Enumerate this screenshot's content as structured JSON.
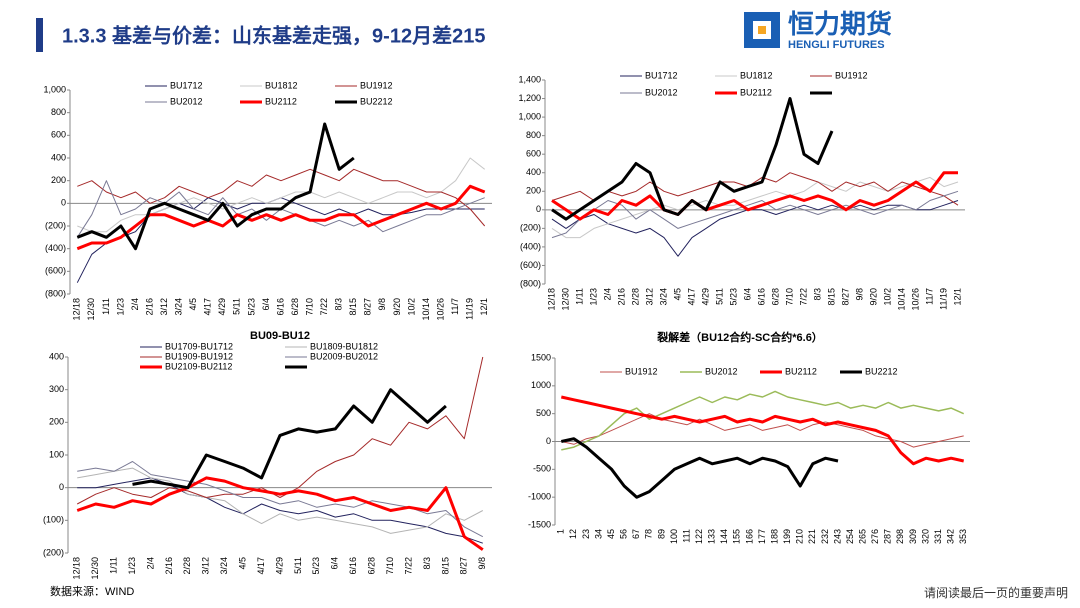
{
  "header": {
    "title": "1.3.3 基差与价差：山东基差走强，9-12月差215",
    "logo_cn": "恒力期货",
    "logo_en": "HENGLI FUTURES"
  },
  "source": "数据来源：WIND",
  "disclaimer": "请阅读最后一页的重要声明",
  "chart_data": [
    {
      "type": "line",
      "categories": [
        "12/18",
        "12/30",
        "1/11",
        "1/23",
        "2/4",
        "2/16",
        "3/12",
        "3/24",
        "4/5",
        "4/17",
        "4/29",
        "5/11",
        "5/23",
        "6/4",
        "6/16",
        "6/28",
        "7/10",
        "7/22",
        "8/3",
        "8/15",
        "8/27",
        "9/8",
        "9/20",
        "10/2",
        "10/14",
        "10/26",
        "11/7",
        "11/19",
        "12/1"
      ],
      "ylim": [
        -800,
        1000
      ],
      "yticks": [
        {
          "value": -800,
          "label": "(800)"
        },
        {
          "value": -600,
          "label": "(600)"
        },
        {
          "value": -400,
          "label": "(400)"
        },
        {
          "value": -200,
          "label": "(200)"
        },
        0,
        200,
        400,
        600,
        800,
        {
          "value": 1000,
          "label": "1,000"
        }
      ],
      "series": [
        {
          "name": "BU1712",
          "color": "#23235e",
          "line_width": 1,
          "values": [
            -700,
            -450,
            -350,
            -300,
            -250,
            -100,
            -50,
            0,
            -50,
            50,
            0,
            -50,
            0,
            0,
            50,
            0,
            -50,
            -100,
            -50,
            -100,
            -50,
            -100,
            -100,
            -80,
            -50,
            -50,
            -50,
            -50,
            -50
          ]
        },
        {
          "name": "BU1812",
          "color": "#c8c8c8",
          "line_width": 1,
          "values": [
            -200,
            -250,
            -250,
            -150,
            -100,
            -100,
            -50,
            0,
            50,
            0,
            -50,
            0,
            50,
            0,
            50,
            100,
            100,
            50,
            100,
            50,
            0,
            50,
            100,
            100,
            50,
            100,
            200,
            400,
            300
          ]
        },
        {
          "name": "BU1912",
          "color": "#a52a2a",
          "line_width": 1,
          "values": [
            150,
            200,
            100,
            50,
            100,
            0,
            50,
            150,
            100,
            50,
            100,
            200,
            150,
            250,
            200,
            250,
            300,
            250,
            200,
            300,
            250,
            200,
            200,
            150,
            100,
            100,
            50,
            -50,
            -200
          ]
        },
        {
          "name": "BU2012",
          "color": "#7a7a95",
          "line_width": 1,
          "values": [
            -300,
            -100,
            200,
            -100,
            -50,
            50,
            0,
            100,
            -50,
            -100,
            50,
            -100,
            -50,
            -150,
            -50,
            -100,
            -150,
            -200,
            -150,
            -200,
            -150,
            -250,
            -200,
            -150,
            -100,
            -100,
            -50,
            0,
            50
          ]
        },
        {
          "name": "BU2112",
          "color": "#ff0000",
          "line_width": 3,
          "values": [
            -400,
            -350,
            -350,
            -300,
            -200,
            -100,
            -100,
            -150,
            -200,
            -150,
            -200,
            -100,
            -150,
            -100,
            -150,
            -100,
            -150,
            -150,
            -100,
            -100,
            -200,
            -150,
            -100,
            -50,
            0,
            -50,
            0,
            150,
            100
          ]
        },
        {
          "name": "BU2212",
          "color": "#000000",
          "line_width": 3,
          "values": [
            -300,
            -250,
            -300,
            -200,
            -400,
            -50,
            0,
            -50,
            -100,
            -150,
            0,
            -200,
            -100,
            -50,
            -50,
            50,
            100,
            700,
            300,
            400,
            null,
            null,
            null,
            null,
            null,
            null,
            null,
            null,
            null
          ]
        }
      ]
    },
    {
      "type": "line",
      "categories": [
        "12/18",
        "12/30",
        "1/11",
        "1/23",
        "2/4",
        "2/16",
        "2/28",
        "3/12",
        "3/24",
        "4/5",
        "4/17",
        "4/29",
        "5/11",
        "5/23",
        "6/4",
        "6/16",
        "6/28",
        "7/10",
        "7/22",
        "8/3",
        "8/15",
        "8/27",
        "9/8",
        "9/20",
        "10/2",
        "10/14",
        "10/26",
        "11/7",
        "11/19",
        "12/1"
      ],
      "ylim": [
        -800,
        1400
      ],
      "yticks": [
        {
          "value": -800,
          "label": "(800)"
        },
        {
          "value": -600,
          "label": "(600)"
        },
        {
          "value": -400,
          "label": "(400)"
        },
        {
          "value": -200,
          "label": "(200)"
        },
        0,
        200,
        400,
        600,
        800,
        {
          "value": 1000,
          "label": "1,000"
        },
        {
          "value": 1200,
          "label": "1,200"
        },
        {
          "value": 1400,
          "label": "1,400"
        }
      ],
      "series": [
        {
          "name": "BU1712",
          "color": "#23235e",
          "line_width": 1,
          "values": [
            -100,
            -200,
            -100,
            -50,
            -150,
            -200,
            -250,
            -200,
            -300,
            -500,
            -300,
            -200,
            -100,
            -50,
            0,
            0,
            -50,
            0,
            50,
            0,
            50,
            0,
            50,
            0,
            50,
            50,
            0,
            0,
            50,
            100
          ]
        },
        {
          "name": "BU1812",
          "color": "#c8c8c8",
          "line_width": 1,
          "values": [
            -200,
            -300,
            -300,
            -200,
            -150,
            -100,
            -50,
            0,
            50,
            0,
            50,
            100,
            50,
            50,
            100,
            150,
            200,
            150,
            200,
            300,
            250,
            200,
            300,
            250,
            200,
            250,
            300,
            350,
            250,
            300
          ]
        },
        {
          "name": "BU1912",
          "color": "#a52a2a",
          "line_width": 1,
          "values": [
            100,
            150,
            200,
            100,
            200,
            150,
            200,
            300,
            200,
            150,
            200,
            250,
            300,
            300,
            250,
            350,
            300,
            400,
            350,
            300,
            200,
            300,
            250,
            300,
            200,
            300,
            250,
            200,
            150,
            50
          ]
        },
        {
          "name": "BU2012",
          "color": "#7a7a95",
          "line_width": 1,
          "values": [
            -300,
            -250,
            -100,
            0,
            100,
            50,
            -100,
            0,
            -100,
            -200,
            -150,
            -100,
            -50,
            0,
            50,
            100,
            0,
            50,
            0,
            -50,
            0,
            50,
            0,
            -50,
            0,
            50,
            0,
            100,
            150,
            200
          ]
        },
        {
          "name": "BU2112",
          "color": "#ff0000",
          "line_width": 3,
          "values": [
            100,
            0,
            -100,
            0,
            -50,
            100,
            50,
            150,
            0,
            -50,
            100,
            0,
            50,
            100,
            0,
            50,
            100,
            150,
            100,
            150,
            100,
            0,
            100,
            50,
            100,
            200,
            300,
            200,
            400,
            400
          ]
        },
        {
          "color": "#000000",
          "line_width": 3,
          "values": [
            0,
            -100,
            0,
            100,
            200,
            300,
            500,
            400,
            0,
            -50,
            100,
            0,
            300,
            200,
            250,
            300,
            700,
            1200,
            600,
            500,
            850,
            null,
            null,
            null,
            null,
            null,
            null,
            null,
            null,
            null
          ]
        }
      ]
    },
    {
      "type": "line",
      "title": "BU09-BU12",
      "categories": [
        "12/18",
        "12/30",
        "1/11",
        "1/23",
        "2/4",
        "2/16",
        "2/28",
        "3/12",
        "3/24",
        "4/5",
        "4/17",
        "4/29",
        "5/11",
        "5/23",
        "6/4",
        "6/16",
        "6/28",
        "7/10",
        "7/22",
        "8/3",
        "8/15",
        "8/27",
        "9/8"
      ],
      "ylim": [
        -200,
        400
      ],
      "yticks": [
        {
          "value": -200,
          "label": "(200)"
        },
        {
          "value": -100,
          "label": "(100)"
        },
        0,
        100,
        200,
        300,
        400
      ],
      "series": [
        {
          "name": "BU1709-BU1712",
          "color": "#23235e",
          "line_width": 1,
          "values": [
            0,
            0,
            10,
            20,
            30,
            10,
            -20,
            -30,
            -60,
            -80,
            -50,
            -70,
            -80,
            -70,
            -90,
            -80,
            -100,
            -100,
            -110,
            -120,
            -140,
            -150,
            -170
          ]
        },
        {
          "name": "BU1809-BU1812",
          "color": "#b4b4b4",
          "line_width": 1,
          "values": [
            30,
            40,
            50,
            60,
            30,
            20,
            -20,
            -30,
            -40,
            -80,
            -110,
            -80,
            -100,
            -90,
            -100,
            -110,
            -120,
            -140,
            -130,
            -120,
            -80,
            -100,
            -70
          ]
        },
        {
          "name": "BU1909-BU1912",
          "color": "#a52a2a",
          "line_width": 1,
          "values": [
            -50,
            -20,
            0,
            -20,
            -30,
            0,
            -10,
            -30,
            -20,
            -20,
            0,
            -30,
            0,
            50,
            80,
            100,
            150,
            130,
            200,
            180,
            220,
            150,
            400
          ]
        },
        {
          "name": "BU2009-BU2012",
          "color": "#7a7a95",
          "line_width": 1,
          "values": [
            50,
            60,
            50,
            80,
            40,
            30,
            20,
            10,
            -10,
            -30,
            -30,
            -50,
            -40,
            -60,
            -50,
            -60,
            -40,
            -50,
            -60,
            -80,
            -70,
            -120,
            -150
          ]
        },
        {
          "name": "BU2109-BU2112",
          "color": "#ff0000",
          "line_width": 3,
          "values": [
            -70,
            -50,
            -60,
            -40,
            -50,
            -20,
            0,
            30,
            20,
            0,
            -10,
            -20,
            -10,
            -20,
            -40,
            -30,
            -50,
            -70,
            -60,
            -70,
            0,
            -150,
            -190
          ]
        },
        {
          "color": "#000000",
          "line_width": 3,
          "values": [
            null,
            null,
            null,
            10,
            20,
            10,
            0,
            100,
            80,
            60,
            30,
            160,
            180,
            170,
            180,
            250,
            200,
            300,
            250,
            200,
            250,
            null,
            null
          ]
        }
      ]
    },
    {
      "type": "line",
      "title": "裂解差（BU12合约-SC合约*6.6）",
      "categories": [
        "1",
        "12",
        "23",
        "34",
        "45",
        "56",
        "67",
        "78",
        "89",
        "100",
        "111",
        "122",
        "133",
        "144",
        "155",
        "166",
        "177",
        "188",
        "199",
        "210",
        "221",
        "232",
        "243",
        "254",
        "265",
        "276",
        "287",
        "298",
        "309",
        "320",
        "331",
        "342",
        "353"
      ],
      "ylim": [
        -1500,
        1500
      ],
      "yticks": [
        -1500,
        -1000,
        -500,
        0,
        500,
        1000,
        1500
      ],
      "series": [
        {
          "name": "BU1912",
          "color": "#c0504d",
          "line_width": 1,
          "values": [
            0,
            -50,
            50,
            100,
            200,
            300,
            400,
            500,
            400,
            350,
            300,
            400,
            300,
            200,
            250,
            300,
            200,
            250,
            300,
            200,
            300,
            350,
            300,
            250,
            200,
            100,
            50,
            0,
            -100,
            -50,
            0,
            50,
            100
          ]
        },
        {
          "name": "BU2012",
          "color": "#9bbb59",
          "line_width": 1.5,
          "values": [
            -150,
            -100,
            0,
            100,
            300,
            500,
            600,
            400,
            500,
            600,
            700,
            800,
            700,
            800,
            750,
            850,
            800,
            900,
            800,
            750,
            700,
            650,
            700,
            600,
            650,
            600,
            700,
            600,
            650,
            600,
            550,
            600,
            500
          ]
        },
        {
          "name": "BU2112",
          "color": "#ff0000",
          "line_width": 3,
          "values": [
            800,
            750,
            700,
            650,
            600,
            550,
            500,
            450,
            400,
            450,
            400,
            350,
            400,
            450,
            350,
            400,
            350,
            450,
            400,
            350,
            400,
            300,
            350,
            300,
            250,
            200,
            100,
            -200,
            -400,
            -300,
            -350,
            -300,
            -350
          ]
        },
        {
          "name": "BU2212",
          "color": "#000000",
          "line_width": 3,
          "values": [
            0,
            50,
            -100,
            -300,
            -500,
            -800,
            -1000,
            -900,
            -700,
            -500,
            -400,
            -300,
            -400,
            -350,
            -300,
            -400,
            -300,
            -350,
            -450,
            -800,
            -400,
            -300,
            -350,
            null,
            null,
            null,
            null,
            null,
            null,
            null,
            null,
            null,
            null
          ]
        }
      ]
    }
  ]
}
